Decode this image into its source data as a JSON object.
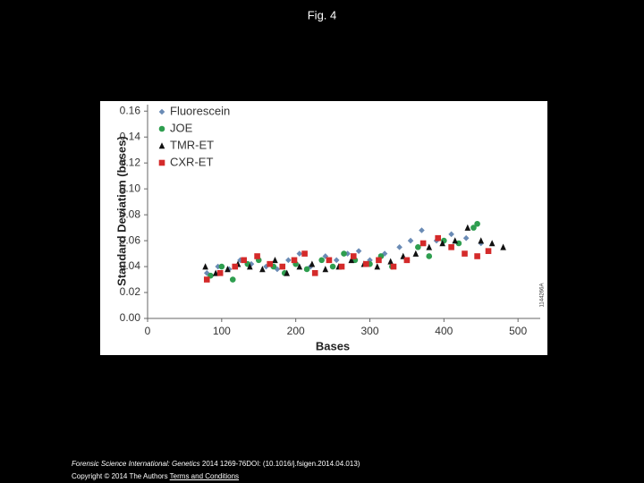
{
  "page_title": "Fig. 4",
  "chart_data": {
    "type": "scatter",
    "xlabel": "Bases",
    "ylabel": "Standard Deviation (bases)",
    "side_label": "1144266A",
    "xlim": [
      0,
      530
    ],
    "ylim": [
      0,
      0.165
    ],
    "xticks": [
      0,
      100,
      200,
      300,
      400,
      500
    ],
    "yticks": [
      {
        "value": 0,
        "label": "0.00"
      },
      {
        "value": 0.02,
        "label": "0.02"
      },
      {
        "value": 0.04,
        "label": "0.04"
      },
      {
        "value": 0.06,
        "label": "0.06"
      },
      {
        "value": 0.08,
        "label": "0.08"
      },
      {
        "value": 0.1,
        "label": "0.10"
      },
      {
        "value": 0.12,
        "label": "0.12"
      },
      {
        "value": 0.14,
        "label": "0.14"
      },
      {
        "value": 0.16,
        "label": "0.16"
      }
    ],
    "legend": "upper left",
    "series": [
      {
        "name": "Fluorescein",
        "color": "#6a8bb5",
        "marker": "diamond",
        "x": [
          80,
          95,
          110,
          125,
          140,
          160,
          175,
          190,
          205,
          220,
          240,
          255,
          270,
          285,
          300,
          320,
          340,
          355,
          370,
          390,
          410,
          430,
          450
        ],
        "values": [
          0.035,
          0.04,
          0.038,
          0.045,
          0.042,
          0.04,
          0.038,
          0.045,
          0.05,
          0.04,
          0.048,
          0.045,
          0.05,
          0.052,
          0.045,
          0.05,
          0.055,
          0.06,
          0.068,
          0.06,
          0.065,
          0.062,
          0.058
        ]
      },
      {
        "name": "JOE",
        "color": "#2e9e4f",
        "marker": "circle",
        "x": [
          85,
          100,
          115,
          135,
          150,
          170,
          185,
          200,
          215,
          235,
          250,
          265,
          280,
          300,
          315,
          330,
          350,
          365,
          380,
          400,
          420,
          440,
          445
        ],
        "values": [
          0.033,
          0.04,
          0.03,
          0.042,
          0.045,
          0.04,
          0.035,
          0.042,
          0.038,
          0.045,
          0.04,
          0.05,
          0.045,
          0.042,
          0.048,
          0.04,
          0.045,
          0.055,
          0.048,
          0.06,
          0.058,
          0.07,
          0.073
        ]
      },
      {
        "name": "TMR-ET",
        "color": "#111111",
        "marker": "triangle",
        "x": [
          78,
          92,
          108,
          122,
          138,
          155,
          172,
          188,
          205,
          222,
          240,
          258,
          275,
          292,
          310,
          328,
          345,
          362,
          380,
          398,
          415,
          432,
          450,
          465,
          480
        ],
        "values": [
          0.04,
          0.035,
          0.038,
          0.042,
          0.04,
          0.038,
          0.045,
          0.035,
          0.04,
          0.042,
          0.038,
          0.04,
          0.045,
          0.042,
          0.04,
          0.044,
          0.048,
          0.05,
          0.055,
          0.058,
          0.06,
          0.07,
          0.06,
          0.058,
          0.055
        ]
      },
      {
        "name": "CXR-ET",
        "color": "#d42a2a",
        "marker": "square",
        "x": [
          80,
          98,
          118,
          130,
          148,
          165,
          182,
          198,
          212,
          226,
          245,
          262,
          278,
          295,
          312,
          332,
          350,
          372,
          392,
          410,
          428,
          445,
          460
        ],
        "values": [
          0.03,
          0.035,
          0.04,
          0.045,
          0.048,
          0.042,
          0.04,
          0.045,
          0.05,
          0.035,
          0.045,
          0.04,
          0.048,
          0.042,
          0.045,
          0.04,
          0.045,
          0.058,
          0.062,
          0.055,
          0.05,
          0.048,
          0.052
        ]
      }
    ]
  },
  "footer": {
    "journal": "Forensic Science International: Genetics",
    "citation": " 2014 1269-76DOI: (10.1016/j.fsigen.2014.04.013)",
    "copyright": "Copyright © 2014 The Authors",
    "link": "Terms and Conditions"
  }
}
